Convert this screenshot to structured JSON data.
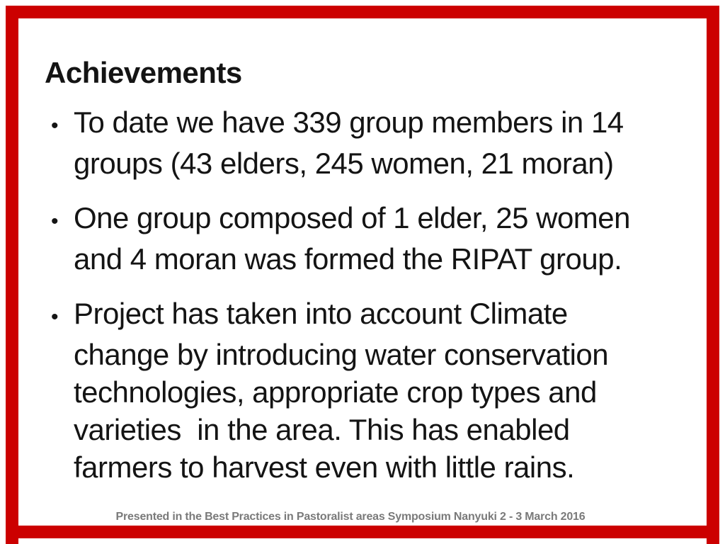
{
  "slide": {
    "title": "Achievements",
    "bullet_char": "•",
    "bullets": [
      {
        "lines": [
          "To date we have 339 group members in 14",
          "groups (43 elders, 245 women, 21 moran)"
        ]
      },
      {
        "lines": [
          "One group composed of 1 elder, 25 women",
          "and 4 moran was formed the RIPAT group."
        ]
      },
      {
        "lines": [
          "Project has taken into account Climate",
          "change by introducing water conservation",
          "technologies, appropriate crop types and",
          "varieties  in the area. This has enabled",
          "farmers to harvest even with little rains."
        ]
      }
    ],
    "footer": "Presented in the Best Practices in Pastoralist areas Symposium Nanyuki 2 - 3 March 2016",
    "colors": {
      "border_red": "#cc0000",
      "text": "#141414",
      "footer_gray": "#7a7a7a"
    }
  }
}
